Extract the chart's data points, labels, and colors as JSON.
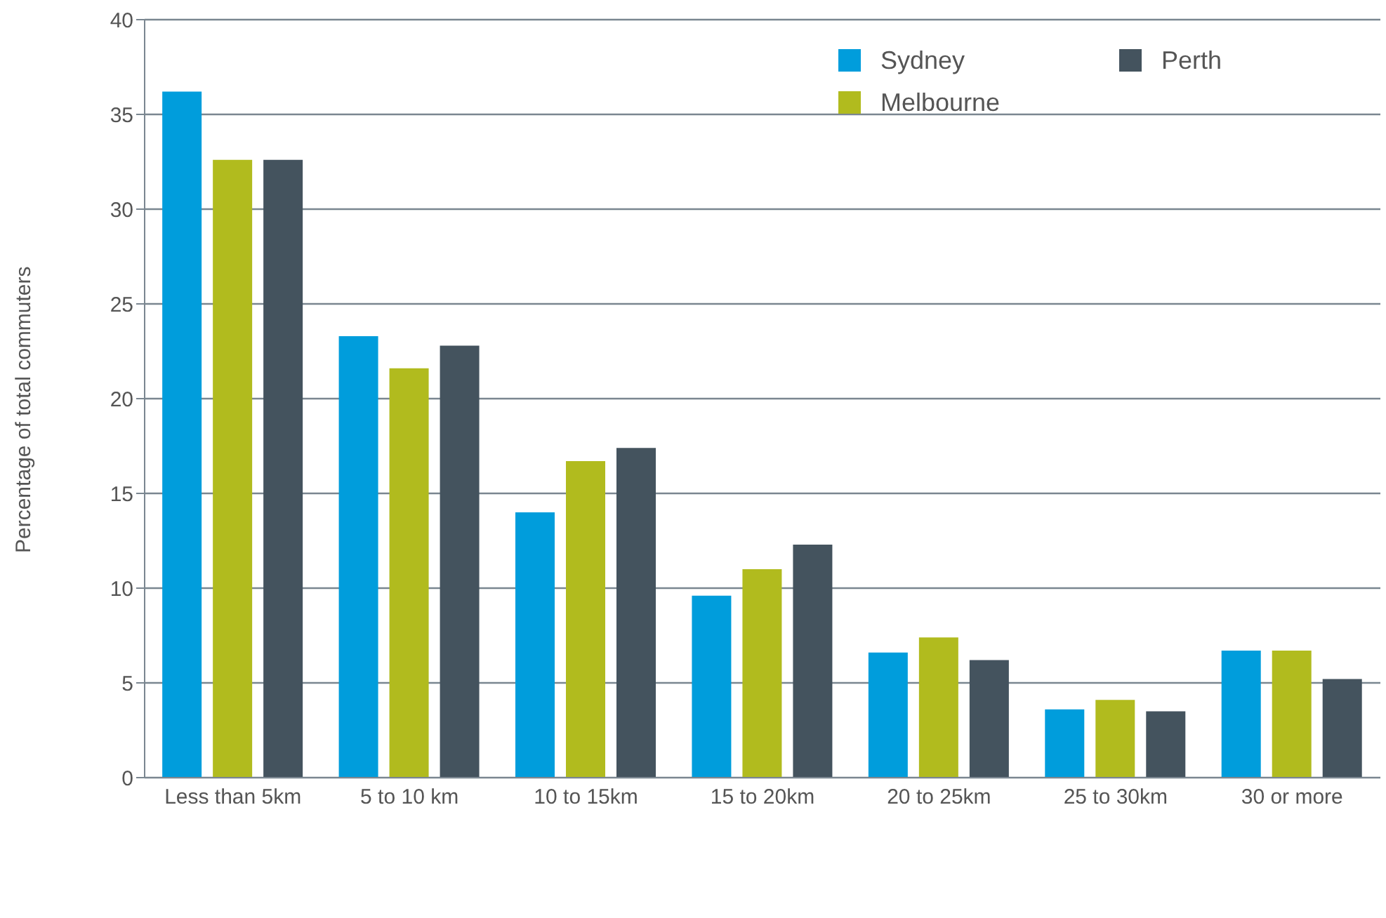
{
  "chart_data": {
    "type": "bar",
    "ylabel": "Percentage of total commuters",
    "categories": [
      "Less than 5km",
      "5 to 10 km",
      "10 to 15km",
      "15 to 20km",
      "20 to 25km",
      "25 to 30km",
      "30 or more"
    ],
    "series": [
      {
        "name": "Sydney",
        "color": "#009ddc",
        "values": [
          36.2,
          23.3,
          14.0,
          9.6,
          6.6,
          3.6,
          6.7
        ]
      },
      {
        "name": "Melbourne",
        "color": "#b1bb1e",
        "values": [
          32.6,
          21.6,
          16.7,
          11.0,
          7.4,
          4.1,
          6.7
        ]
      },
      {
        "name": "Perth",
        "color": "#44535e",
        "values": [
          32.6,
          22.8,
          17.4,
          12.3,
          6.2,
          3.5,
          5.2
        ]
      }
    ],
    "ylim": [
      0,
      40
    ],
    "yticks": [
      0,
      5,
      10,
      15,
      20,
      25,
      30,
      35,
      40
    ],
    "grid": "y",
    "legend": "top right"
  }
}
